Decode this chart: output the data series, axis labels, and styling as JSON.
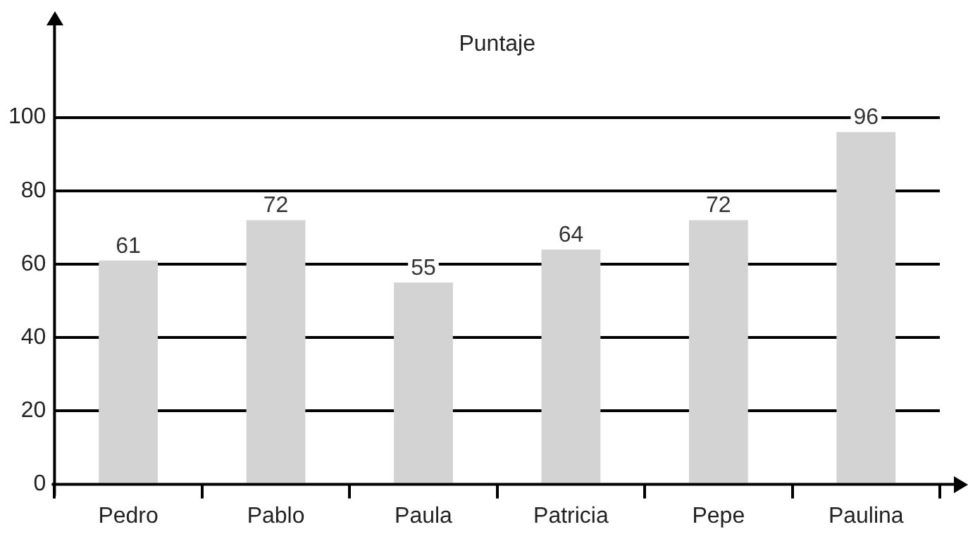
{
  "chart_data": {
    "type": "bar",
    "title": "Puntaje",
    "categories": [
      "Pedro",
      "Pablo",
      "Paula",
      "Patricia",
      "Pepe",
      "Paulina"
    ],
    "values": [
      61,
      72,
      55,
      64,
      72,
      96
    ],
    "color": "#d3d3d3",
    "ylim": [
      0,
      126
    ],
    "yticks": [
      0,
      20,
      40,
      60,
      80,
      100
    ],
    "grid": "y",
    "data_labels": true
  }
}
